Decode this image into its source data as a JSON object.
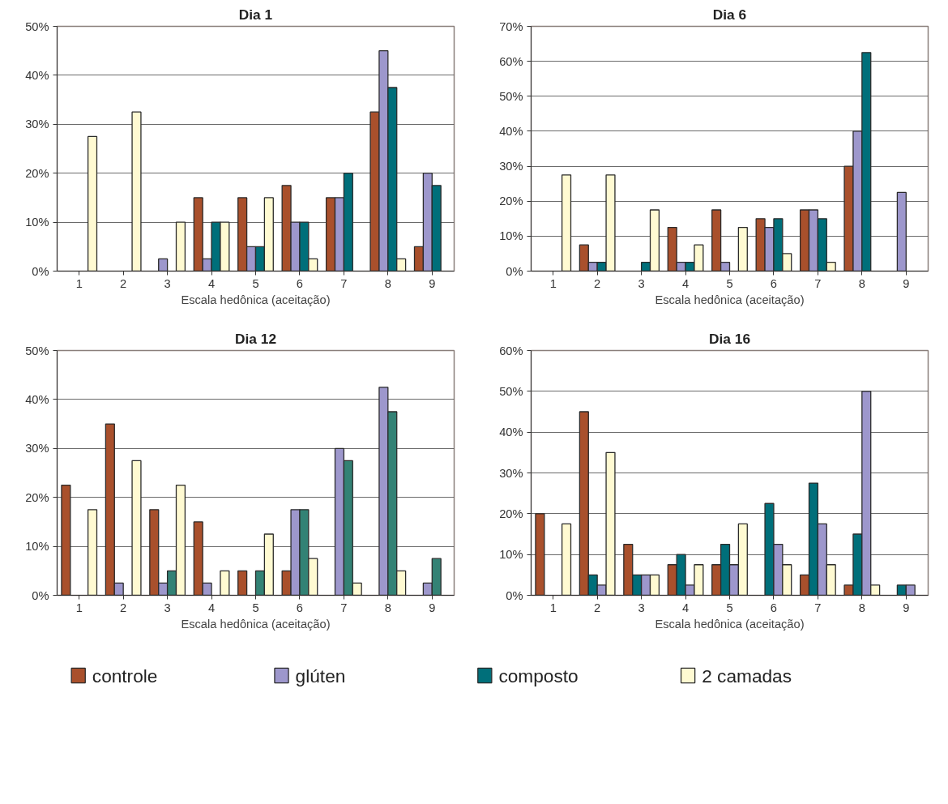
{
  "chart_data": [
    {
      "type": "bar",
      "title": "Dia 1",
      "xlabel": "Escala hedônica (aceitação)",
      "categories": [
        "1",
        "2",
        "3",
        "4",
        "5",
        "6",
        "7",
        "8",
        "9"
      ],
      "ylim": [
        0,
        50
      ],
      "yticks": [
        {
          "value": 0,
          "label": "0%"
        },
        {
          "value": 10,
          "label": "10%"
        },
        {
          "value": 20,
          "label": "20%"
        },
        {
          "value": 30,
          "label": "30%"
        },
        {
          "value": 40,
          "label": "40%"
        },
        {
          "value": 50,
          "label": "50%"
        }
      ],
      "grid": "y",
      "legend": "bottom",
      "series": [
        {
          "name": "controle",
          "color": "#a9502c",
          "values": [
            0,
            0,
            0,
            15,
            15,
            17.5,
            15,
            32.5,
            5
          ]
        },
        {
          "name": "glúten",
          "color": "#9d97cc",
          "values": [
            0,
            0,
            2.5,
            2.5,
            5,
            10,
            15,
            45,
            20
          ]
        },
        {
          "name": "composto",
          "color": "#006f7a",
          "values": [
            0,
            0,
            0,
            10,
            5,
            10,
            20,
            37.5,
            17.5
          ]
        },
        {
          "name": "2 camadas",
          "color": "#fffad2",
          "values": [
            27.5,
            32.5,
            10,
            10,
            15,
            2.5,
            0,
            2.5,
            0
          ]
        }
      ]
    },
    {
      "type": "bar",
      "title": "Dia 6",
      "xlabel": "Escala hedônica (aceitação)",
      "categories": [
        "1",
        "2",
        "3",
        "4",
        "5",
        "6",
        "7",
        "8",
        "9"
      ],
      "ylim": [
        0,
        70
      ],
      "yticks": [
        {
          "value": 0,
          "label": "0%"
        },
        {
          "value": 10,
          "label": "10%"
        },
        {
          "value": 20,
          "label": "20%"
        },
        {
          "value": 30,
          "label": "30%"
        },
        {
          "value": 40,
          "label": "40%"
        },
        {
          "value": 50,
          "label": "50%"
        },
        {
          "value": 60,
          "label": "60%"
        },
        {
          "value": 70,
          "label": "70%"
        }
      ],
      "grid": "y",
      "series": [
        {
          "color": "#a9502c",
          "values": [
            0,
            7.5,
            0,
            12.5,
            17.5,
            15,
            17.5,
            30,
            0
          ]
        },
        {
          "color": "#9d97cc",
          "values": [
            0,
            2.5,
            0,
            2.5,
            2.5,
            12.5,
            17.5,
            40,
            22.5
          ]
        },
        {
          "color": "#006f7a",
          "values": [
            0,
            2.5,
            2.5,
            2.5,
            0,
            15,
            15,
            62.5,
            0
          ]
        },
        {
          "color": "#fffad2",
          "values": [
            27.5,
            27.5,
            17.5,
            7.5,
            12.5,
            5,
            2.5,
            0,
            0
          ]
        }
      ]
    },
    {
      "type": "bar",
      "title": "Dia 12",
      "xlabel": "Escala hedônica (aceitação)",
      "categories": [
        "1",
        "2",
        "3",
        "4",
        "5",
        "6",
        "7",
        "8",
        "9"
      ],
      "ylim": [
        0,
        50
      ],
      "yticks": [
        {
          "value": 0,
          "label": "0%"
        },
        {
          "value": 10,
          "label": "10%"
        },
        {
          "value": 20,
          "label": "20%"
        },
        {
          "value": 30,
          "label": "30%"
        },
        {
          "value": 40,
          "label": "40%"
        },
        {
          "value": 50,
          "label": "50%"
        }
      ],
      "grid": "y",
      "series": [
        {
          "color": "#a9502c",
          "values": [
            22.5,
            35,
            17.5,
            15,
            5,
            5,
            0,
            0,
            0
          ]
        },
        {
          "color": "#9d97cc",
          "values": [
            0,
            2.5,
            2.5,
            2.5,
            0,
            17.5,
            30,
            42.5,
            2.5
          ]
        },
        {
          "color": "#338275",
          "values": [
            0,
            0,
            5,
            0,
            5,
            17.5,
            27.5,
            37.5,
            7.5
          ]
        },
        {
          "color": "#fffad2",
          "values": [
            17.5,
            27.5,
            22.5,
            5,
            12.5,
            7.5,
            2.5,
            5,
            0
          ]
        }
      ]
    },
    {
      "type": "bar",
      "title": "Dia 16",
      "xlabel": "Escala hedônica (aceitação)",
      "categories": [
        "1",
        "2",
        "3",
        "4",
        "5",
        "6",
        "7",
        "8",
        "9"
      ],
      "ylim": [
        0,
        60
      ],
      "yticks": [
        {
          "value": 0,
          "label": "0%"
        },
        {
          "value": 10,
          "label": "10%"
        },
        {
          "value": 20,
          "label": "20%"
        },
        {
          "value": 30,
          "label": "30%"
        },
        {
          "value": 40,
          "label": "40%"
        },
        {
          "value": 50,
          "label": "50%"
        },
        {
          "value": 60,
          "label": "60%"
        }
      ],
      "grid": "y",
      "series": [
        {
          "color": "#a9502c",
          "values": [
            20,
            45,
            12.5,
            7.5,
            7.5,
            0,
            5,
            2.5,
            0
          ]
        },
        {
          "color": "#006f7a",
          "values": [
            0,
            5,
            5,
            10,
            12.5,
            22.5,
            27.5,
            15,
            2.5
          ]
        },
        {
          "color": "#9d97cc",
          "values": [
            0,
            2.5,
            5,
            2.5,
            7.5,
            12.5,
            17.5,
            50,
            2.5
          ]
        },
        {
          "color": "#fffad2",
          "values": [
            17.5,
            35,
            5,
            7.5,
            17.5,
            7.5,
            7.5,
            2.5,
            0
          ]
        }
      ]
    }
  ]
}
